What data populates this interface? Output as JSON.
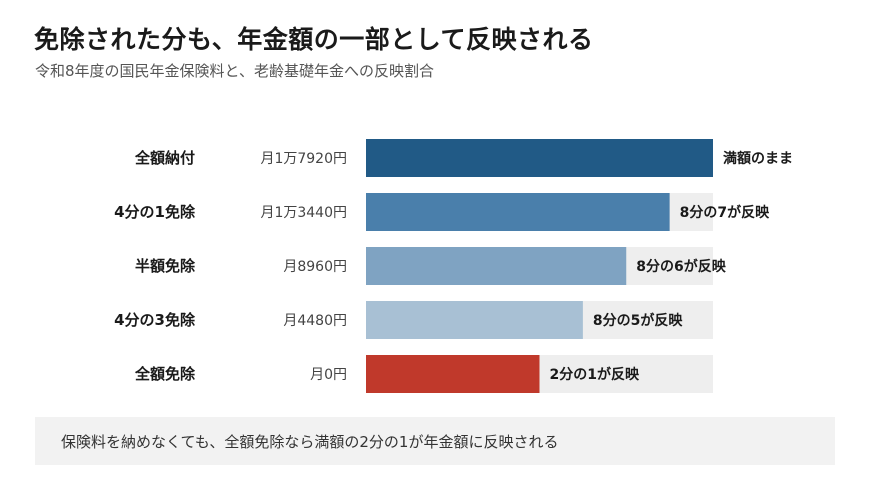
{
  "title": "免除された分も、年金額の一部として反映される",
  "subtitle": "令和8年度の国民年金保険料と、老齢基礎年金への反映割合",
  "footer_note": "保険料を納めなくても、全額免除なら満額の2分の1が年金額に反映される",
  "colors": {
    "track": "#eeeeee",
    "bars": [
      "#215a86",
      "#4a7fab",
      "#7fa3c2",
      "#a8c0d4",
      "#c0392b"
    ]
  },
  "chart_data": {
    "type": "bar",
    "orientation": "horizontal",
    "categories": [
      "全額納付",
      "4分の1免除",
      "半額免除",
      "4分の3免除",
      "全額免除"
    ],
    "premium_labels": [
      "月1万7920円",
      "月1万3440円",
      "月8960円",
      "月4480円",
      "月0円"
    ],
    "values": [
      1,
      0.875,
      0.75,
      0.625,
      0.5
    ],
    "value_labels": [
      "満額のまま",
      "8分の7が反映",
      "8分の6が反映",
      "8分の5が反映",
      "2分の1が反映"
    ],
    "xlim": [
      0,
      1
    ],
    "grid": false,
    "legend": "none"
  }
}
